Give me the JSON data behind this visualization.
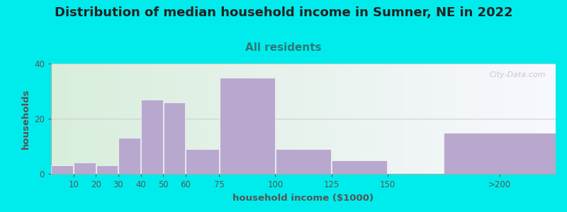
{
  "title": "Distribution of median household income in Sumner, NE in 2022",
  "subtitle": "All residents",
  "xlabel": "household income ($1000)",
  "ylabel": "households",
  "title_fontsize": 13,
  "subtitle_fontsize": 11,
  "label_fontsize": 9.5,
  "background_color": "#00ecec",
  "bar_color": "#b8a8ce",
  "values": [
    3,
    4,
    3,
    13,
    27,
    26,
    9,
    35,
    9,
    5,
    15
  ],
  "bar_lefts": [
    0,
    10,
    20,
    30,
    40,
    50,
    60,
    75,
    100,
    125,
    175
  ],
  "bar_widths": [
    10,
    10,
    10,
    10,
    10,
    10,
    15,
    25,
    25,
    25,
    50
  ],
  "ylim": [
    0,
    40
  ],
  "yticks": [
    0,
    20,
    40
  ],
  "xtick_labels": [
    "10",
    "20",
    "30",
    "40",
    "50",
    "60",
    "75",
    "100",
    "125",
    "150",
    ">200"
  ],
  "xtick_positions": [
    10,
    20,
    30,
    40,
    50,
    60,
    75,
    100,
    125,
    150,
    200
  ],
  "xlim": [
    0,
    225
  ],
  "grid_color": "#cccccc",
  "subtitle_color": "#2a7a7a",
  "title_color": "#222222",
  "tick_color": "#555555",
  "watermark": "City-Data.com"
}
